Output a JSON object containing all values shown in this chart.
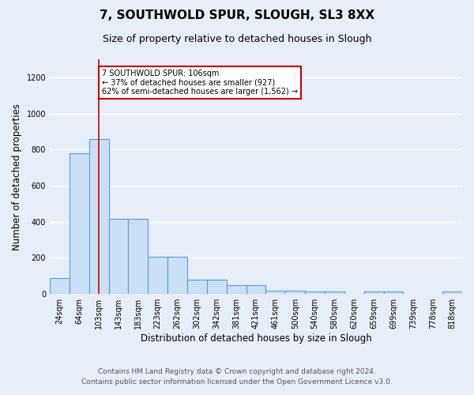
{
  "title": "7, SOUTHWOLD SPUR, SLOUGH, SL3 8XX",
  "subtitle": "Size of property relative to detached houses in Slough",
  "xlabel": "Distribution of detached houses by size in Slough",
  "ylabel": "Number of detached properties",
  "bar_labels": [
    "24sqm",
    "64sqm",
    "103sqm",
    "143sqm",
    "183sqm",
    "223sqm",
    "262sqm",
    "302sqm",
    "342sqm",
    "381sqm",
    "421sqm",
    "461sqm",
    "500sqm",
    "540sqm",
    "580sqm",
    "620sqm",
    "659sqm",
    "699sqm",
    "739sqm",
    "778sqm",
    "818sqm"
  ],
  "bar_values": [
    90,
    780,
    860,
    415,
    415,
    205,
    205,
    80,
    80,
    50,
    50,
    20,
    20,
    15,
    15,
    0,
    15,
    15,
    0,
    0,
    15
  ],
  "bar_color": "#cce0f5",
  "bar_edge_color": "#5b9bd5",
  "red_line_index": 2,
  "property_line_label": "7 SOUTHWOLD SPUR: 106sqm",
  "annotation_line1": "← 37% of detached houses are smaller (927)",
  "annotation_line2": "62% of semi-detached houses are larger (1,562) →",
  "annotation_box_color": "#ffffff",
  "annotation_box_edge": "#cc0000",
  "red_line_color": "#cc0000",
  "ylim": [
    0,
    1300
  ],
  "yticks": [
    0,
    200,
    400,
    600,
    800,
    1000,
    1200
  ],
  "footer_line1": "Contains HM Land Registry data © Crown copyright and database right 2024.",
  "footer_line2": "Contains public sector information licensed under the Open Government Licence v3.0.",
  "bg_color": "#e8eef8",
  "plot_bg_color": "#e8eef8",
  "grid_color": "#ffffff",
  "title_fontsize": 11,
  "subtitle_fontsize": 9,
  "xlabel_fontsize": 8.5,
  "ylabel_fontsize": 8.5,
  "tick_fontsize": 7,
  "footer_fontsize": 6.5
}
